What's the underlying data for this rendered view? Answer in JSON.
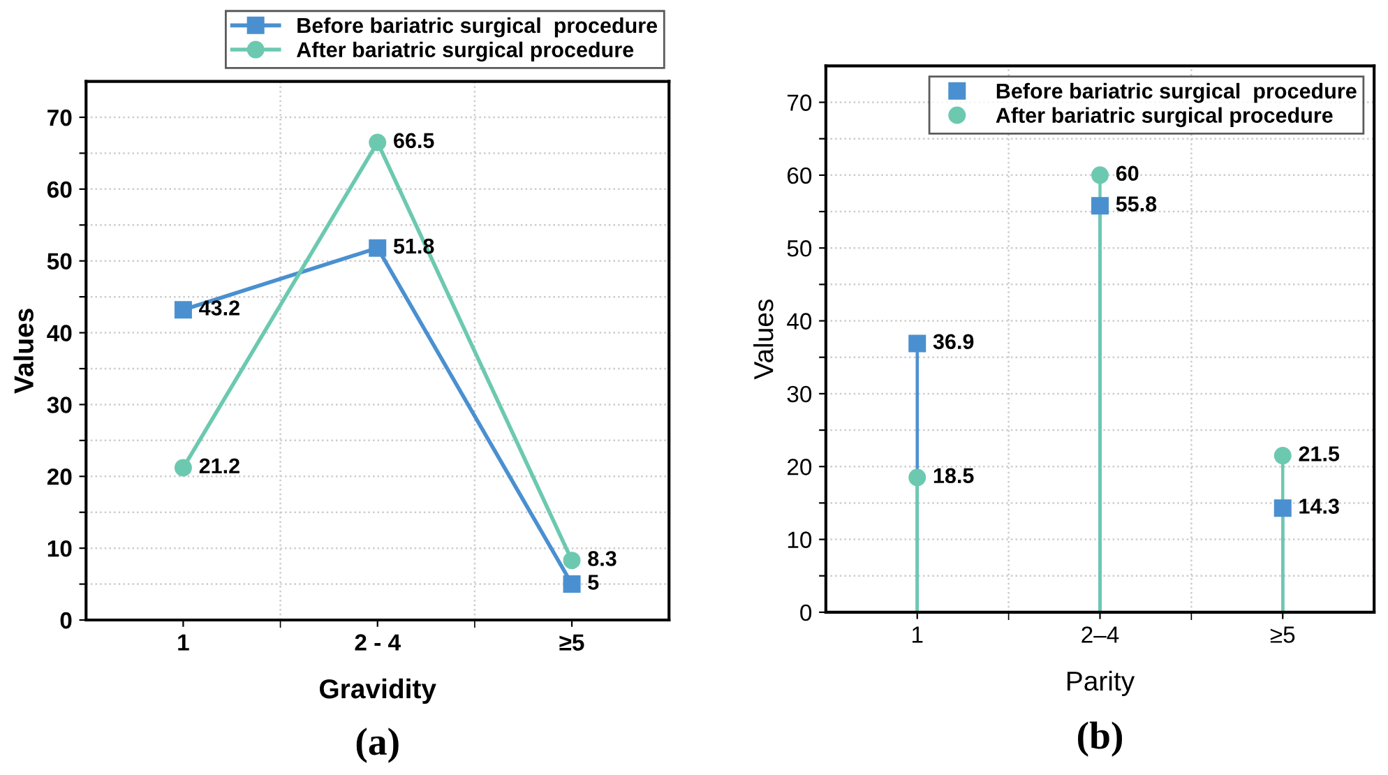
{
  "chart_data": [
    {
      "type": "line",
      "xlabel": "Gravidity",
      "ylabel": "Values",
      "categories": [
        "1",
        "2 - 4",
        "≥5"
      ],
      "series": [
        {
          "name": "Before bariatric surgical  procedure",
          "color": "#4a90d0",
          "values": [
            43.2,
            51.8,
            5
          ],
          "marker": "square"
        },
        {
          "name": "After bariatric surgical procedure",
          "color": "#6cc9b0",
          "values": [
            21.2,
            66.5,
            8.3
          ],
          "marker": "circle"
        }
      ],
      "ylim": [
        0,
        75
      ],
      "yticks": [
        0,
        {
          "value": 5,
          "label": null
        },
        10,
        {
          "value": 15,
          "label": null
        },
        20,
        {
          "value": 25,
          "label": null
        },
        30,
        {
          "value": 35,
          "label": null
        },
        40,
        {
          "value": 45,
          "label": null
        },
        50,
        {
          "value": 55,
          "label": null
        },
        60,
        {
          "value": 65,
          "label": null
        },
        70
      ],
      "grid": true,
      "legend": "top right",
      "data_labels": true,
      "annotations": [
        "(a)"
      ]
    },
    {
      "type": "lollipop",
      "xlabel": "Parity",
      "ylabel": "Values",
      "categories": [
        "1",
        "2–4",
        "≥5"
      ],
      "series": [
        {
          "name": "Before bariatric surgical  procedure",
          "color": "#4a90d0",
          "values": [
            36.9,
            55.8,
            14.3
          ],
          "marker": "square"
        },
        {
          "name": "After bariatric surgical procedure",
          "color": "#6cc9b0",
          "values": [
            18.5,
            60,
            21.5
          ],
          "marker": "circle"
        }
      ],
      "ylim": [
        0,
        75
      ],
      "yticks": [
        0,
        {
          "value": 5,
          "label": null
        },
        10,
        {
          "value": 15,
          "label": null
        },
        20,
        {
          "value": 25,
          "label": null
        },
        30,
        {
          "value": 35,
          "label": null
        },
        40,
        {
          "value": 45,
          "label": null
        },
        50,
        {
          "value": 55,
          "label": null
        },
        60,
        {
          "value": 65,
          "label": null
        },
        70
      ],
      "grid": true,
      "legend": "top right",
      "data_labels": true,
      "annotations": [
        "(b)"
      ]
    }
  ]
}
